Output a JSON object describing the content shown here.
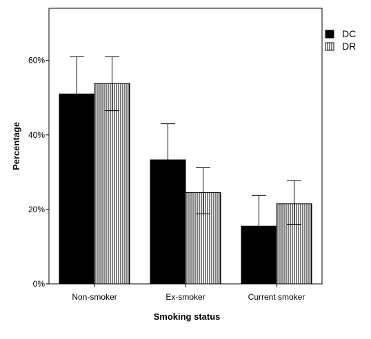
{
  "chart_data": {
    "type": "bar",
    "title": "",
    "xlabel": "Smoking status",
    "ylabel": "Percentage",
    "categories": [
      "Non-smoker",
      "Ex-smoker",
      "Current smoker"
    ],
    "y_ticks": [
      "0%",
      "20%",
      "40%",
      "60%"
    ],
    "y_tick_values": [
      0,
      20,
      40,
      60
    ],
    "ylim": [
      0,
      74
    ],
    "grid": false,
    "legend_position": "right-top",
    "series": [
      {
        "name": "DC",
        "pattern": "solid",
        "color": "#000000",
        "values": [
          51,
          33.3,
          15.5
        ],
        "error_upper": [
          61,
          43,
          23.8
        ]
      },
      {
        "name": "DR",
        "pattern": "vertical-stripes",
        "color": "#ffffff",
        "values": [
          53.8,
          24.5,
          21.5
        ],
        "error_upper": [
          61,
          31.2,
          27.7
        ],
        "error_lower": [
          46.5,
          18.8,
          16
        ]
      }
    ]
  }
}
